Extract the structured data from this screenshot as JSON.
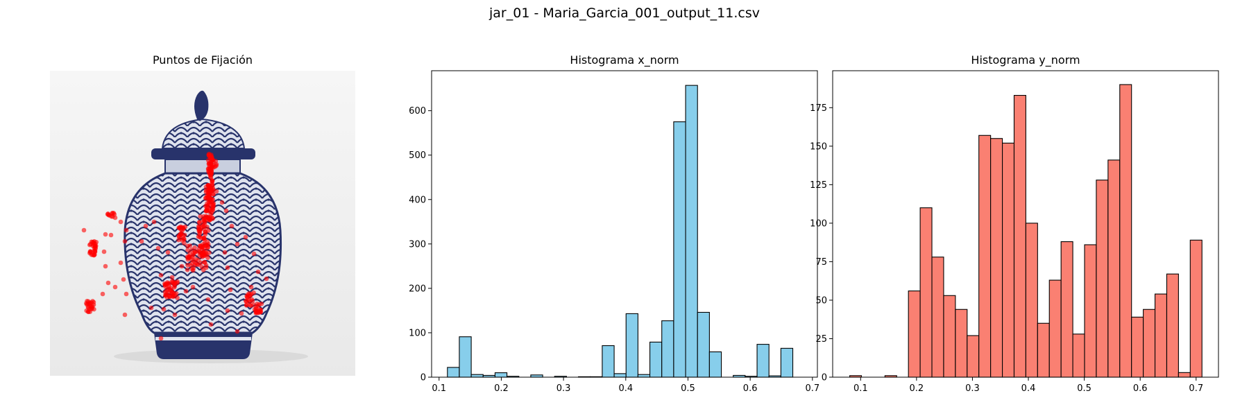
{
  "figure": {
    "suptitle": "jar_01 - Maria_Garcia_001_output_11.csv"
  },
  "panels": {
    "fixations": {
      "title": "Puntos de Fijación"
    },
    "hist_x": {
      "title": "Histograma x_norm"
    },
    "hist_y": {
      "title": "Histograma y_norm"
    }
  },
  "colors": {
    "hist_x_fill": "#87ceeb",
    "hist_y_fill": "#fa8072",
    "edge": "#000000",
    "fixation": "#ff0000",
    "jar_blue": "#28336b",
    "jar_light": "#dfe3ee"
  },
  "chart_data": [
    {
      "type": "scatter",
      "title": "Puntos de Fijación",
      "background": "image of a blue-and-white porcelain ginger jar with lid",
      "marker_color": "red",
      "axes": "off"
    },
    {
      "type": "bar",
      "title": "Histograma x_norm",
      "xlabel": "",
      "ylabel": "",
      "xlim": [
        0.088,
        0.708
      ],
      "ylim": [
        0,
        690
      ],
      "xticks": [
        0.1,
        0.2,
        0.3,
        0.4,
        0.5,
        0.6,
        0.7
      ],
      "xtick_labels": [
        "0.1",
        "0.2",
        "0.3",
        "0.4",
        "0.5",
        "0.6",
        "0.7"
      ],
      "yticks": [
        0,
        100,
        200,
        300,
        400,
        500,
        600
      ],
      "ytick_labels": [
        "0",
        "100",
        "200",
        "300",
        "400",
        "500",
        "600"
      ],
      "bin_start": 0.1134,
      "bin_width": 0.01914,
      "values": [
        22,
        91,
        6,
        4,
        10,
        2,
        0,
        5,
        0,
        2,
        0,
        1,
        1,
        71,
        8,
        143,
        6,
        79,
        127,
        575,
        657,
        146,
        57,
        0,
        4,
        2,
        74,
        3,
        65
      ],
      "color": "skyblue",
      "edgecolor": "black"
    },
    {
      "type": "bar",
      "title": "Histograma y_norm",
      "xlabel": "",
      "ylabel": "",
      "xlim": [
        0.05,
        0.74
      ],
      "ylim": [
        0,
        199
      ],
      "xticks": [
        0.1,
        0.2,
        0.3,
        0.4,
        0.5,
        0.6,
        0.7
      ],
      "xtick_labels": [
        "0.1",
        "0.2",
        "0.3",
        "0.4",
        "0.5",
        "0.6",
        "0.7"
      ],
      "yticks": [
        0,
        25,
        50,
        75,
        100,
        125,
        150,
        175
      ],
      "ytick_labels": [
        "0",
        "25",
        "50",
        "75",
        "100",
        "125",
        "150",
        "175"
      ],
      "bin_start": 0.0805,
      "bin_width": 0.021,
      "values": [
        1,
        0,
        0,
        1,
        0,
        56,
        110,
        78,
        53,
        44,
        27,
        157,
        155,
        152,
        183,
        100,
        35,
        63,
        88,
        28,
        86,
        128,
        141,
        190,
        39,
        44,
        54,
        67,
        3,
        89
      ],
      "color": "salmon",
      "edgecolor": "black"
    }
  ]
}
